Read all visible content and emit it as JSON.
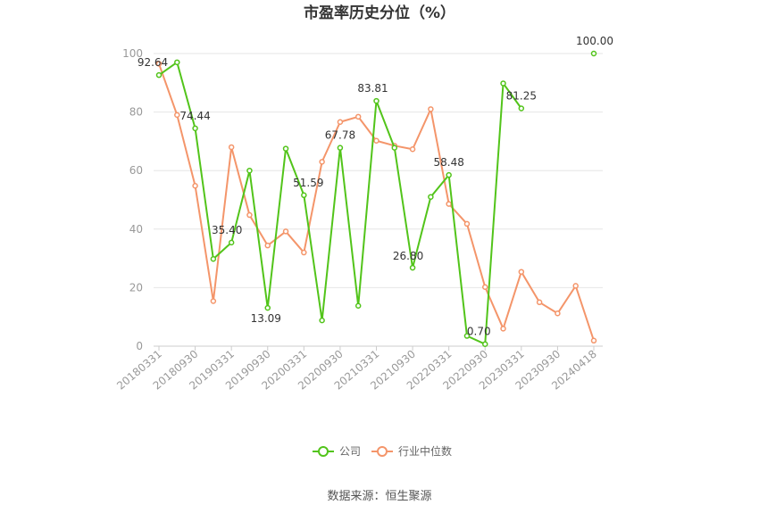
{
  "chart_data": {
    "type": "line",
    "title": "市盈率历史分位（%）",
    "xlabel": "",
    "ylabel": "",
    "ylim": [
      0,
      100
    ],
    "yticks": [
      0,
      20,
      40,
      60,
      80,
      100
    ],
    "x_tick_labels": [
      "20180331",
      "20180930",
      "20190331",
      "20190930",
      "20200331",
      "20200930",
      "20210331",
      "20210930",
      "20220331",
      "20220930",
      "20230331",
      "20230930",
      "20240418"
    ],
    "series": [
      {
        "name": "公司",
        "color": "#52c41a",
        "values": [
          92.64,
          97.0,
          74.44,
          29.8,
          35.4,
          60.0,
          13.09,
          67.5,
          51.59,
          8.8,
          67.78,
          13.8,
          83.81,
          67.8,
          26.8,
          51.0,
          58.48,
          3.5,
          0.7,
          89.8,
          81.25,
          null,
          null,
          null,
          100.0
        ]
      },
      {
        "name": "行业中位数",
        "color": "#f4956a",
        "values": [
          96.5,
          79.0,
          54.8,
          15.4,
          68.0,
          44.8,
          34.4,
          39.2,
          32.0,
          63.0,
          76.6,
          78.4,
          70.2,
          68.5,
          67.3,
          81.0,
          48.6,
          41.8,
          20.2,
          6.0,
          25.4,
          15.0,
          11.2,
          20.6,
          1.9
        ]
      }
    ],
    "data_labels": [
      {
        "index": 0,
        "text": "92.64"
      },
      {
        "index": 2,
        "text": "74.44"
      },
      {
        "index": 4,
        "text": "35.40"
      },
      {
        "index": 6,
        "text": "13.09"
      },
      {
        "index": 8,
        "text": "51.59"
      },
      {
        "index": 10,
        "text": "67.78"
      },
      {
        "index": 12,
        "text": "83.81"
      },
      {
        "index": 14,
        "text": "26.80"
      },
      {
        "index": 16,
        "text": "58.48"
      },
      {
        "index": 18,
        "text": "0.70"
      },
      {
        "index": 20,
        "text": "81.25"
      },
      {
        "index": 24,
        "text": "100.00"
      }
    ],
    "legend_position": "bottom-center",
    "grid": true
  },
  "footer": {
    "source": "数据来源：恒生聚源"
  }
}
